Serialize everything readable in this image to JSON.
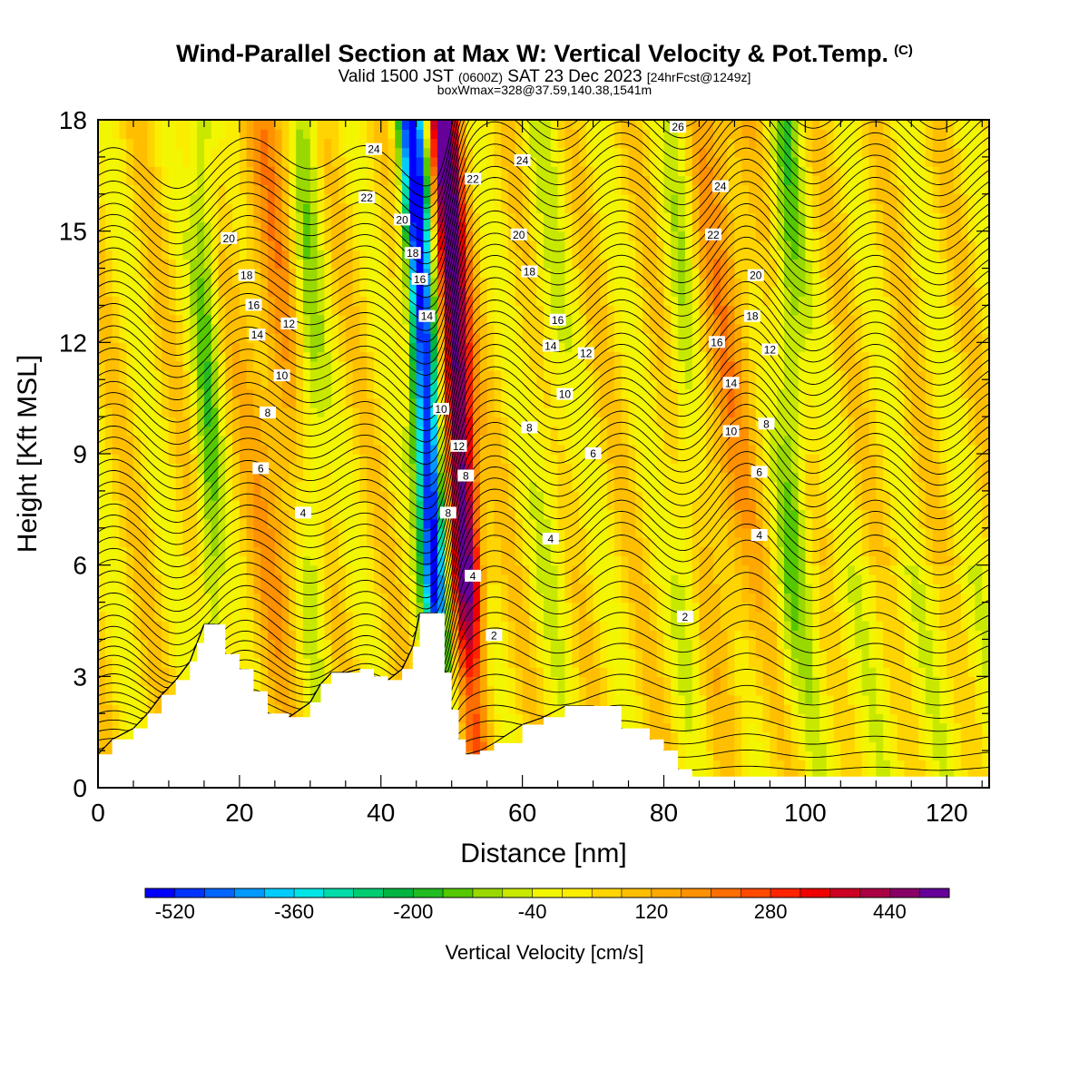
{
  "header": {
    "title": "Wind-Parallel Section at Max W: Vertical Velocity & Pot.Temp.",
    "copyright": "(C)",
    "line2_a": "Valid 1500 JST",
    "line2_b": "(0600Z)",
    "line2_c": "SAT 23 Dec 2023",
    "line2_d": "[24hrFcst@1249z]",
    "line3": "boxWmax=328@37.59,140.38,1541m"
  },
  "chart_data": {
    "type": "heatmap",
    "xlabel": "Distance [nm]",
    "ylabel": "Height [Kft MSL]",
    "xlim": [
      0,
      126
    ],
    "ylim": [
      0,
      18
    ],
    "x_ticks": [
      0,
      20,
      40,
      60,
      80,
      100,
      120
    ],
    "y_ticks": [
      0,
      3,
      6,
      9,
      12,
      15,
      18
    ],
    "colorbar": {
      "label": "Vertical Velocity [cm/s]",
      "tick_values": [
        -520,
        -360,
        -200,
        -40,
        120,
        280,
        440
      ],
      "min": -560,
      "max": 520,
      "step": 40,
      "colors": [
        "#0000ff",
        "#0033ff",
        "#0066ff",
        "#0099ff",
        "#00ccff",
        "#00e5e5",
        "#00dcaa",
        "#00cc70",
        "#00b441",
        "#22bb22",
        "#55c800",
        "#99d800",
        "#c8e800",
        "#f2f600",
        "#fbed00",
        "#ffd400",
        "#ffbf00",
        "#ffa900",
        "#ff9000",
        "#ff6e00",
        "#ff4a00",
        "#ff2200",
        "#ee0000",
        "#cc0022",
        "#aa0044",
        "#880066",
        "#660099"
      ]
    },
    "terrain_kft": [
      [
        0,
        0.9
      ],
      [
        2,
        1.3
      ],
      [
        5,
        1.6
      ],
      [
        7,
        2.0
      ],
      [
        9,
        2.5
      ],
      [
        11,
        2.9
      ],
      [
        13,
        3.4
      ],
      [
        14,
        3.9
      ],
      [
        15,
        4.4
      ],
      [
        16.5,
        4.4
      ],
      [
        18,
        3.6
      ],
      [
        20,
        3.2
      ],
      [
        22,
        2.6
      ],
      [
        24,
        2.0
      ],
      [
        27,
        1.9
      ],
      [
        30,
        2.3
      ],
      [
        31.5,
        2.8
      ],
      [
        33,
        3.1
      ],
      [
        35,
        3.1
      ],
      [
        37,
        3.2
      ],
      [
        39,
        3.0
      ],
      [
        41,
        2.9
      ],
      [
        43,
        3.2
      ],
      [
        44.5,
        3.8
      ],
      [
        45.5,
        4.7
      ],
      [
        48,
        4.7
      ],
      [
        49,
        3.1
      ],
      [
        50,
        2.1
      ],
      [
        51,
        1.3
      ],
      [
        52,
        0.9
      ],
      [
        54,
        1.0
      ],
      [
        56,
        1.2
      ],
      [
        60,
        1.7
      ],
      [
        63,
        1.9
      ],
      [
        66,
        2.2
      ],
      [
        70,
        2.2
      ],
      [
        74,
        1.6
      ],
      [
        78,
        1.3
      ],
      [
        80,
        1.0
      ],
      [
        82,
        0.5
      ],
      [
        84,
        0.3
      ],
      [
        126,
        0.3
      ]
    ],
    "theta_contour_labels": [
      "2",
      "4",
      "6",
      "8",
      "10",
      "12",
      "14",
      "16",
      "18",
      "20",
      "22",
      "24",
      "26"
    ]
  }
}
